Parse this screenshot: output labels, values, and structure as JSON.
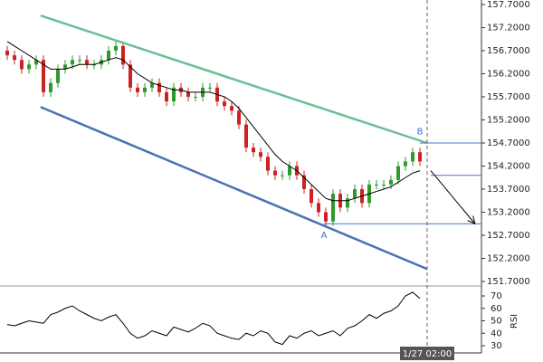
{
  "chart_data": {
    "type": "candlestick",
    "ylim": [
      151.7,
      157.7
    ],
    "yticks": [
      {
        "value": 157.7,
        "label": "157.7000"
      },
      {
        "value": 157.2,
        "label": "157.2000"
      },
      {
        "value": 156.7,
        "label": "156.7000"
      },
      {
        "value": 156.2,
        "label": "156.2000"
      },
      {
        "value": 155.7,
        "label": "155.7000"
      },
      {
        "value": 155.2,
        "label": "155.2000"
      },
      {
        "value": 154.7,
        "label": "154.7000"
      },
      {
        "value": 154.2,
        "label": "154.2000"
      },
      {
        "value": 153.7,
        "label": "153.7000"
      },
      {
        "value": 153.2,
        "label": "153.2000"
      },
      {
        "value": 152.7,
        "label": "152.7000"
      },
      {
        "value": 152.2,
        "label": "152.2000"
      },
      {
        "value": 151.7,
        "label": "151.7000"
      }
    ],
    "xlim": [
      -1,
      65.5
    ],
    "up_color": "#2e9a2e",
    "down_color": "#cc2222",
    "open": [
      156.7,
      156.6,
      156.5,
      156.3,
      156.4,
      156.5,
      155.8,
      156.0,
      156.3,
      156.4,
      156.5,
      156.5,
      156.4,
      156.4,
      156.5,
      156.7,
      156.8,
      156.4,
      155.9,
      155.8,
      155.9,
      156.0,
      155.8,
      155.6,
      155.9,
      155.8,
      155.7,
      155.7,
      155.9,
      155.9,
      155.6,
      155.5,
      155.4,
      155.1,
      154.6,
      154.5,
      154.4,
      154.1,
      154.0,
      154.0,
      154.2,
      154.0,
      153.7,
      153.4,
      153.2,
      153.0,
      153.6,
      153.3,
      153.5,
      153.7,
      153.4,
      153.8,
      153.8,
      153.8,
      153.9,
      154.2,
      154.3,
      154.5
    ],
    "high": [
      156.8,
      156.7,
      156.6,
      156.5,
      156.6,
      156.6,
      156.1,
      156.4,
      156.5,
      156.6,
      156.6,
      156.6,
      156.5,
      156.6,
      156.8,
      156.9,
      156.9,
      156.5,
      156.0,
      156.0,
      156.1,
      156.1,
      155.9,
      156.0,
      156.0,
      155.9,
      155.8,
      156.0,
      156.0,
      156.0,
      155.7,
      155.6,
      155.5,
      155.2,
      154.7,
      154.6,
      154.5,
      154.2,
      154.1,
      154.3,
      154.3,
      154.1,
      153.8,
      153.5,
      153.3,
      153.7,
      153.7,
      153.6,
      153.8,
      153.8,
      153.9,
      153.9,
      153.9,
      154.0,
      154.3,
      154.4,
      154.6,
      154.6
    ],
    "low": [
      156.5,
      156.4,
      156.2,
      156.2,
      156.3,
      155.7,
      155.7,
      155.9,
      156.2,
      156.3,
      156.4,
      156.3,
      156.3,
      156.3,
      156.4,
      156.6,
      156.3,
      155.8,
      155.7,
      155.7,
      155.8,
      155.7,
      155.5,
      155.5,
      155.7,
      155.6,
      155.6,
      155.6,
      155.8,
      155.5,
      155.4,
      155.3,
      155.0,
      154.5,
      154.4,
      154.3,
      154.0,
      153.9,
      153.9,
      153.9,
      153.9,
      153.6,
      153.3,
      153.1,
      152.9,
      152.9,
      153.2,
      153.2,
      153.4,
      153.3,
      153.3,
      153.7,
      153.7,
      153.7,
      153.8,
      154.1,
      154.2,
      154.2
    ],
    "close": [
      156.6,
      156.5,
      156.3,
      156.4,
      156.5,
      155.8,
      156.0,
      156.3,
      156.4,
      156.5,
      156.5,
      156.4,
      156.4,
      156.5,
      156.7,
      156.8,
      156.4,
      155.9,
      155.8,
      155.9,
      156.0,
      155.8,
      155.6,
      155.9,
      155.8,
      155.7,
      155.7,
      155.9,
      155.9,
      155.6,
      155.5,
      155.4,
      155.1,
      154.6,
      154.5,
      154.4,
      154.1,
      154.0,
      154.0,
      154.2,
      154.0,
      153.7,
      153.4,
      153.2,
      153.0,
      153.6,
      153.3,
      153.5,
      153.7,
      153.4,
      153.8,
      153.8,
      153.8,
      153.9,
      154.2,
      154.3,
      154.5,
      154.3
    ],
    "moving_average": {
      "color": "#000000",
      "values": [
        156.9,
        156.8,
        156.7,
        156.6,
        156.5,
        156.4,
        156.3,
        156.3,
        156.3,
        156.35,
        156.4,
        156.4,
        156.4,
        156.45,
        156.5,
        156.55,
        156.5,
        156.35,
        156.2,
        156.1,
        156.0,
        155.95,
        155.9,
        155.85,
        155.85,
        155.8,
        155.8,
        155.8,
        155.8,
        155.75,
        155.7,
        155.6,
        155.45,
        155.25,
        155.05,
        154.85,
        154.65,
        154.45,
        154.3,
        154.2,
        154.1,
        153.95,
        153.8,
        153.65,
        153.5,
        153.45,
        153.45,
        153.45,
        153.5,
        153.55,
        153.6,
        153.65,
        153.7,
        153.75,
        153.85,
        153.95,
        154.05,
        154.1
      ]
    },
    "trendlines": [
      {
        "color": "#6cbf94",
        "x": [
          4.6,
          58
        ],
        "y": [
          157.46,
          154.7
        ]
      },
      {
        "color": "#4a72b0",
        "x": [
          4.6,
          58
        ],
        "y": [
          155.48,
          151.97
        ]
      }
    ],
    "levels": [
      {
        "color": "#4a72d0",
        "x": [
          57,
          65.5
        ],
        "y": 154.7
      },
      {
        "color": "#4a72d0",
        "x": [
          58.5,
          65.5
        ],
        "y": 154.0
      },
      {
        "color": "#4a72d0",
        "x": [
          43.75,
          65.5
        ],
        "y": 152.95
      }
    ],
    "arrow": {
      "color": "#000000",
      "x": [
        58.5,
        64.6
      ],
      "y": [
        154.1,
        152.95
      ]
    },
    "points": [
      {
        "label": "A",
        "x": 43.75,
        "y": 152.82
      },
      {
        "label": "B",
        "x": 57,
        "y": 154.83
      }
    ],
    "cursor": {
      "x": 58,
      "label": "1/27 02:00"
    },
    "rsi": {
      "label": "RSI",
      "ylim": [
        20,
        80
      ],
      "yticks": [
        30,
        40,
        50,
        60,
        70
      ],
      "color": "#000000",
      "values": [
        47,
        46,
        48,
        50,
        49,
        48,
        55,
        57,
        60,
        62,
        58,
        55,
        52,
        50,
        53,
        55,
        48,
        40,
        36,
        38,
        42,
        40,
        38,
        45,
        43,
        41,
        44,
        48,
        46,
        40,
        38,
        36,
        35,
        40,
        38,
        42,
        40,
        33,
        31,
        38,
        36,
        40,
        42,
        38,
        40,
        42,
        38,
        44,
        46,
        50,
        55,
        52,
        56,
        58,
        62,
        70,
        73,
        68
      ]
    }
  }
}
